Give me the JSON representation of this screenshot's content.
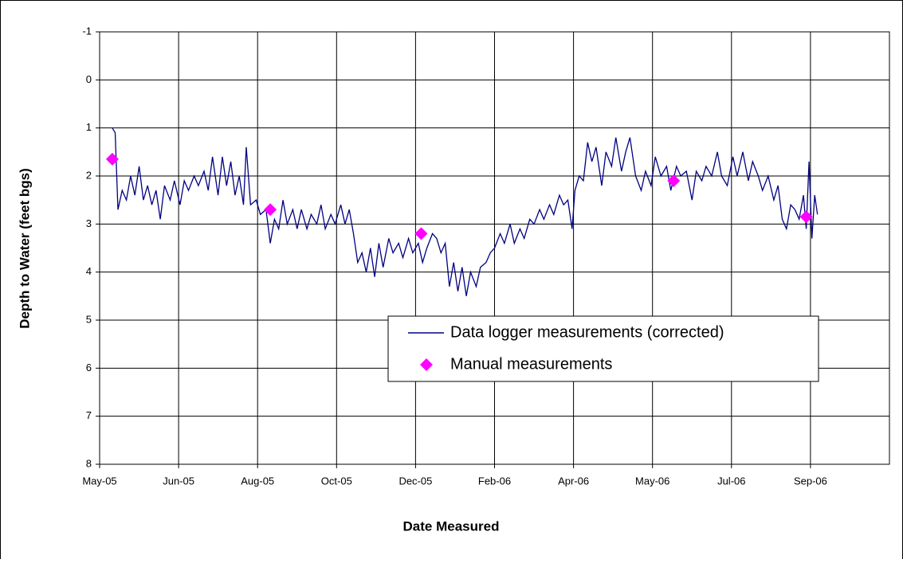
{
  "chart_data": {
    "type": "line",
    "xlabel": "Date Measured",
    "ylabel": "Depth to Water (feet bgs)",
    "xlim": [
      38473,
      39033
    ],
    "xticks": [
      {
        "value": 38473,
        "label": "May-05"
      },
      {
        "value": 38529,
        "label": "Jun-05"
      },
      {
        "value": 38585,
        "label": "Aug-05"
      },
      {
        "value": 38641,
        "label": "Oct-05"
      },
      {
        "value": 38697,
        "label": "Dec-05"
      },
      {
        "value": 38753,
        "label": "Feb-06"
      },
      {
        "value": 38809,
        "label": "Apr-06"
      },
      {
        "value": 38865,
        "label": "May-06"
      },
      {
        "value": 38921,
        "label": "Jul-06"
      },
      {
        "value": 38977,
        "label": "Sep-06"
      }
    ],
    "ylim": [
      -1,
      8
    ],
    "yticks": [
      -1,
      0,
      1,
      2,
      3,
      4,
      5,
      6,
      7,
      8
    ],
    "y_reversed": true,
    "grid": true,
    "legend": "lower right",
    "series": [
      {
        "name": "Data logger measurements (corrected)",
        "color": "#000080",
        "kind": "line",
        "x": [
          38482,
          38484,
          38486,
          38489,
          38492,
          38495,
          38498,
          38501,
          38504,
          38507,
          38510,
          38513,
          38516,
          38519,
          38523,
          38526,
          38530,
          38533,
          38536,
          38540,
          38543,
          38547,
          38550,
          38553,
          38557,
          38560,
          38563,
          38566,
          38569,
          38572,
          38575,
          38577,
          38580,
          38584,
          38587,
          38591,
          38594,
          38597,
          38600,
          38603,
          38606,
          38610,
          38613,
          38616,
          38620,
          38623,
          38627,
          38630,
          38633,
          38637,
          38640,
          38644,
          38647,
          38650,
          38653,
          38656,
          38659,
          38662,
          38665,
          38668,
          38671,
          38674,
          38678,
          38681,
          38685,
          38688,
          38692,
          38695,
          38699,
          38702,
          38705,
          38709,
          38712,
          38715,
          38718,
          38721,
          38724,
          38727,
          38730,
          38733,
          38736,
          38740,
          38743,
          38747,
          38750,
          38753,
          38757,
          38760,
          38764,
          38767,
          38771,
          38774,
          38778,
          38781,
          38785,
          38788,
          38792,
          38795,
          38799,
          38802,
          38805,
          38808,
          38810,
          38813,
          38816,
          38819,
          38822,
          38825,
          38829,
          38832,
          38836,
          38839,
          38843,
          38846,
          38849,
          38853,
          38857,
          38860,
          38864,
          38867,
          38871,
          38875,
          38878,
          38882,
          38885,
          38889,
          38893,
          38896,
          38900,
          38903,
          38907,
          38911,
          38914,
          38918,
          38922,
          38925,
          38929,
          38933,
          38936,
          38940,
          38943,
          38947,
          38951,
          38954,
          38957,
          38960,
          38963,
          38966,
          38969,
          38972,
          38974,
          38976,
          38978,
          38980,
          38982
        ],
        "values": [
          1.0,
          1.1,
          2.7,
          2.3,
          2.5,
          2.0,
          2.4,
          1.8,
          2.5,
          2.2,
          2.6,
          2.3,
          2.9,
          2.2,
          2.5,
          2.1,
          2.6,
          2.1,
          2.3,
          2.0,
          2.2,
          1.9,
          2.3,
          1.6,
          2.4,
          1.6,
          2.2,
          1.7,
          2.4,
          2.0,
          2.6,
          1.4,
          2.6,
          2.5,
          2.8,
          2.7,
          3.4,
          2.9,
          3.1,
          2.5,
          3.0,
          2.7,
          3.1,
          2.7,
          3.1,
          2.8,
          3.0,
          2.6,
          3.1,
          2.8,
          3.0,
          2.6,
          3.0,
          2.7,
          3.2,
          3.8,
          3.6,
          4.0,
          3.5,
          4.1,
          3.4,
          3.9,
          3.3,
          3.6,
          3.4,
          3.7,
          3.3,
          3.6,
          3.4,
          3.8,
          3.5,
          3.2,
          3.3,
          3.6,
          3.4,
          4.3,
          3.8,
          4.4,
          3.9,
          4.5,
          4.0,
          4.3,
          3.9,
          3.8,
          3.6,
          3.5,
          3.2,
          3.4,
          3.0,
          3.4,
          3.1,
          3.3,
          2.9,
          3.0,
          2.7,
          2.9,
          2.6,
          2.8,
          2.4,
          2.6,
          2.5,
          3.1,
          2.3,
          2.0,
          2.1,
          1.3,
          1.7,
          1.4,
          2.2,
          1.5,
          1.8,
          1.2,
          1.9,
          1.5,
          1.2,
          2.0,
          2.3,
          1.9,
          2.2,
          1.6,
          2.0,
          1.8,
          2.3,
          1.8,
          2.0,
          1.9,
          2.5,
          1.9,
          2.1,
          1.8,
          2.0,
          1.5,
          2.0,
          2.2,
          1.6,
          2.0,
          1.5,
          2.1,
          1.7,
          2.0,
          2.3,
          2.0,
          2.5,
          2.2,
          2.9,
          3.1,
          2.6,
          2.7,
          2.9,
          2.4,
          3.1,
          1.7,
          3.3,
          2.4,
          2.8
        ]
      },
      {
        "name": "Manual measurements",
        "color": "#ff00ff",
        "kind": "scatter",
        "marker": "diamond",
        "x": [
          38482,
          38594,
          38701,
          38880,
          38974
        ],
        "values": [
          1.65,
          2.7,
          3.2,
          2.1,
          2.85
        ]
      }
    ]
  }
}
